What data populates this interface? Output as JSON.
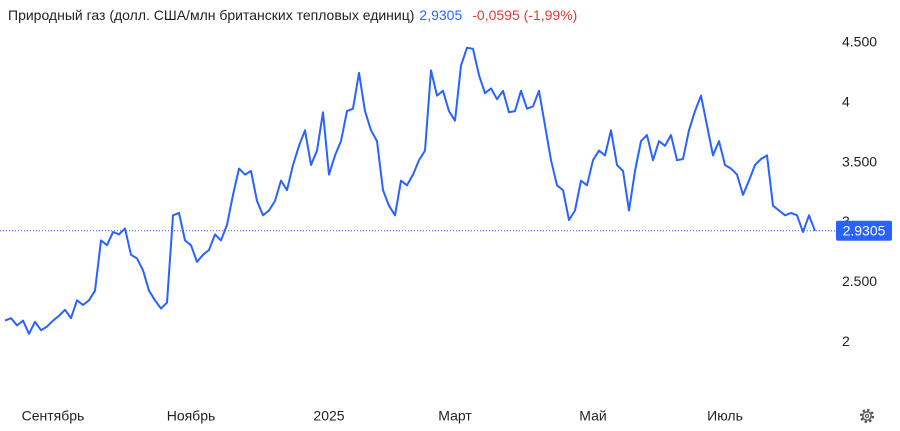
{
  "chart_data": {
    "type": "line",
    "title": "Природный газ (долл. США/млн британских тепловых единиц)",
    "price": "2,9305",
    "change": "-0,0595 (-1,99%)",
    "price_color": "#2962ff",
    "change_color": "#e53935",
    "categories": [
      null,
      null,
      null,
      null,
      null,
      null,
      null,
      null,
      "Сентябрь",
      null,
      null,
      null,
      null,
      null,
      null,
      null,
      null,
      null,
      null,
      null,
      null,
      null,
      null,
      null,
      null,
      null,
      null,
      null,
      null,
      null,
      null,
      "Ноябрь",
      null,
      null,
      null,
      null,
      null,
      null,
      null,
      null,
      null,
      null,
      null,
      null,
      null,
      null,
      null,
      null,
      null,
      null,
      null,
      null,
      null,
      null,
      "2025",
      null,
      null,
      null,
      null,
      null,
      null,
      null,
      null,
      null,
      null,
      null,
      null,
      null,
      null,
      null,
      null,
      null,
      null,
      null,
      null,
      "Март",
      null,
      null,
      null,
      null,
      null,
      null,
      null,
      null,
      null,
      null,
      null,
      null,
      null,
      null,
      null,
      null,
      null,
      null,
      null,
      null,
      null,
      null,
      "Май",
      null,
      null,
      null,
      null,
      null,
      null,
      null,
      null,
      null,
      null,
      null,
      null,
      null,
      null,
      null,
      null,
      null,
      null,
      null,
      null,
      null,
      "Июль",
      null,
      null,
      null,
      null,
      null,
      null,
      null,
      null,
      null,
      null,
      null,
      null,
      null,
      null,
      null
    ],
    "series": [
      {
        "name": "Природный газ",
        "color": "#2962ff",
        "values": [
          2.18,
          2.2,
          2.14,
          2.18,
          2.07,
          2.17,
          2.1,
          2.13,
          2.18,
          2.22,
          2.27,
          2.2,
          2.35,
          2.31,
          2.35,
          2.43,
          2.85,
          2.81,
          2.92,
          2.9,
          2.95,
          2.73,
          2.7,
          2.6,
          2.43,
          2.35,
          2.28,
          2.33,
          3.06,
          3.08,
          2.85,
          2.81,
          2.67,
          2.73,
          2.77,
          2.9,
          2.85,
          2.98,
          3.23,
          3.45,
          3.4,
          3.43,
          3.18,
          3.06,
          3.1,
          3.18,
          3.35,
          3.27,
          3.48,
          3.64,
          3.77,
          3.48,
          3.6,
          3.92,
          3.4,
          3.56,
          3.68,
          3.93,
          3.95,
          4.25,
          3.93,
          3.77,
          3.68,
          3.27,
          3.14,
          3.06,
          3.35,
          3.31,
          3.4,
          3.52,
          3.6,
          4.27,
          4.06,
          4.1,
          3.93,
          3.85,
          4.31,
          4.46,
          4.45,
          4.23,
          4.08,
          4.12,
          4.03,
          4.1,
          3.92,
          3.93,
          4.1,
          3.95,
          3.97,
          4.1,
          3.81,
          3.52,
          3.31,
          3.27,
          3.02,
          3.1,
          3.35,
          3.31,
          3.52,
          3.6,
          3.56,
          3.77,
          3.48,
          3.43,
          3.1,
          3.43,
          3.68,
          3.73,
          3.52,
          3.68,
          3.64,
          3.73,
          3.52,
          3.53,
          3.77,
          3.93,
          4.06,
          3.81,
          3.56,
          3.68,
          3.48,
          3.45,
          3.4,
          3.23,
          3.35,
          3.48,
          3.53,
          3.56,
          3.14,
          3.1,
          3.06,
          3.08,
          3.06,
          2.92,
          3.06,
          2.9305
        ]
      }
    ],
    "current_value": 2.9305,
    "ylim": [
      1.5,
      4.85
    ],
    "yticks": [
      2,
      {
        "value": 2.5,
        "label": "2.500"
      },
      3,
      {
        "value": 3.5,
        "label": "3.500"
      },
      4,
      {
        "value": 4.5,
        "label": "4.500"
      }
    ]
  }
}
